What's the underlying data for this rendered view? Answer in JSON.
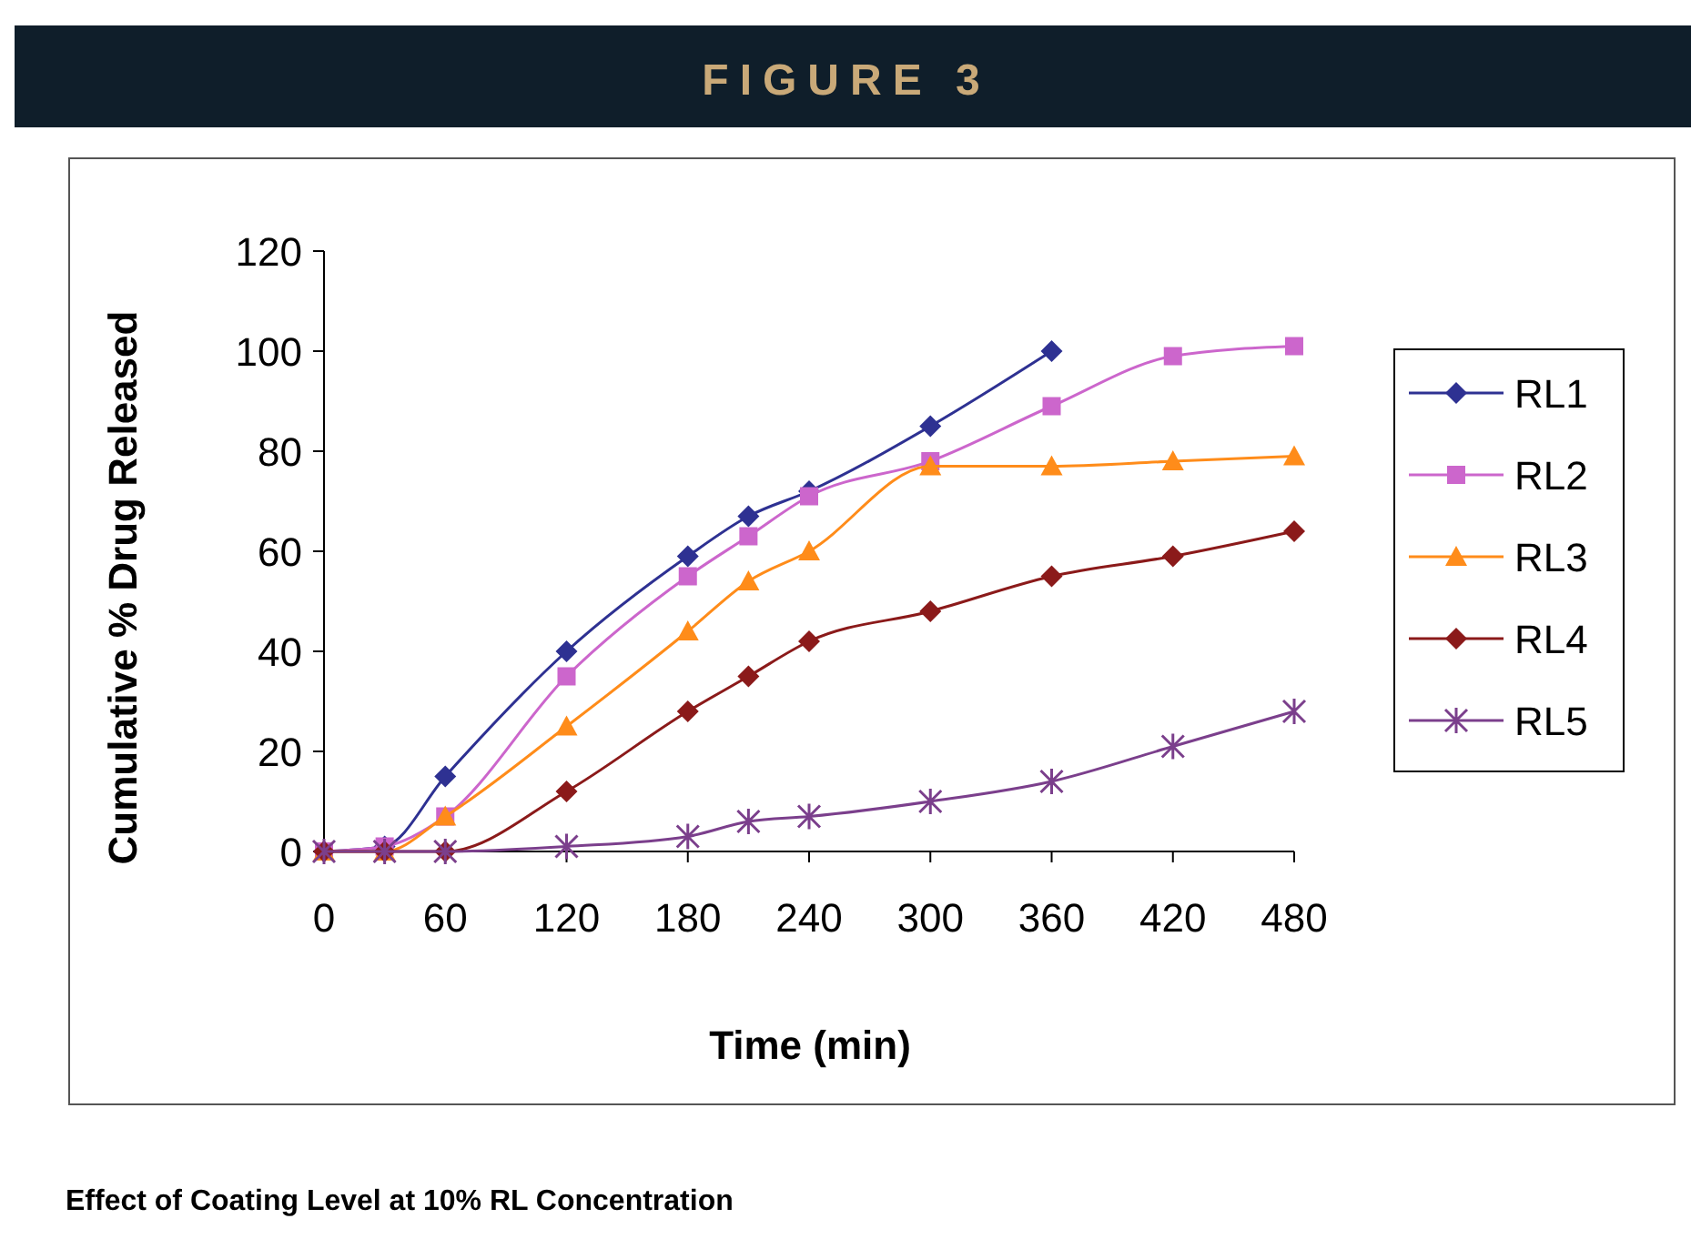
{
  "chart_data": {
    "type": "line",
    "title": "FIGURE 3",
    "xlabel": "Time (min)",
    "ylabel": "Cumulative % Drug Released",
    "annotations": [
      "Effect of Coating Level at 10% RL Concentration"
    ],
    "xlim": [
      0,
      480
    ],
    "xticks": [
      0,
      60,
      120,
      180,
      240,
      300,
      360,
      420,
      480
    ],
    "ylim": [
      0,
      120
    ],
    "yticks": [
      0,
      20,
      40,
      60,
      80,
      100,
      120
    ],
    "grid": false,
    "legend": "right",
    "line_style": "solid",
    "series": [
      {
        "name": "RL1",
        "color": "#2e3192",
        "marker": "diamond",
        "x": [
          0,
          30,
          60,
          120,
          180,
          210,
          240,
          300,
          360
        ],
        "values": [
          0,
          1,
          15,
          40,
          59,
          67,
          72,
          85,
          100
        ]
      },
      {
        "name": "RL2",
        "color": "#cc66cc",
        "marker": "square",
        "x": [
          0,
          30,
          60,
          120,
          180,
          210,
          240,
          300,
          360,
          420,
          480
        ],
        "values": [
          0,
          1,
          7,
          35,
          55,
          63,
          71,
          78,
          89,
          99,
          101
        ]
      },
      {
        "name": "RL3",
        "color": "#ff8c1a",
        "marker": "triangle",
        "x": [
          0,
          30,
          60,
          120,
          180,
          210,
          240,
          300,
          360,
          420,
          480
        ],
        "values": [
          0,
          0,
          7,
          25,
          44,
          54,
          60,
          77,
          77,
          78,
          79
        ]
      },
      {
        "name": "RL4",
        "color": "#8b1a1a",
        "marker": "diamond",
        "x": [
          0,
          30,
          60,
          120,
          180,
          210,
          240,
          300,
          360,
          420,
          480
        ],
        "values": [
          0,
          0,
          0,
          12,
          28,
          35,
          42,
          48,
          55,
          59,
          64
        ]
      },
      {
        "name": "RL5",
        "color": "#7b3f8c",
        "marker": "cross",
        "x": [
          0,
          30,
          60,
          120,
          180,
          210,
          240,
          300,
          360,
          420,
          480
        ],
        "values": [
          0,
          0,
          0,
          1,
          3,
          6,
          7,
          10,
          14,
          21,
          28
        ]
      }
    ]
  }
}
